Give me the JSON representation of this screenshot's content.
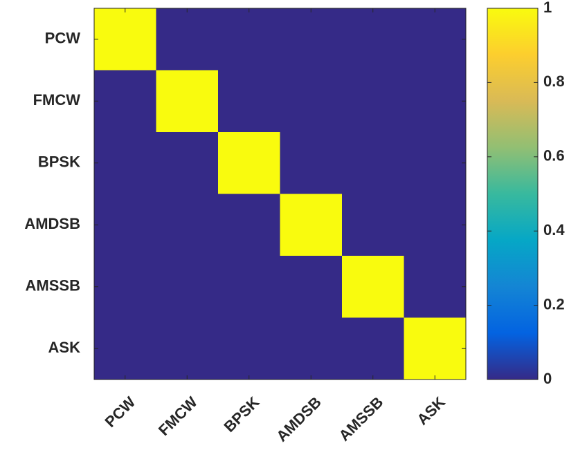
{
  "chart_data": {
    "type": "heatmap",
    "x_categories": [
      "PCW",
      "FMCW",
      "BPSK",
      "AMDSB",
      "AMSSB",
      "ASK"
    ],
    "y_categories": [
      "PCW",
      "FMCW",
      "BPSK",
      "AMDSB",
      "AMSSB",
      "ASK"
    ],
    "z": [
      [
        1,
        0,
        0,
        0,
        0,
        0
      ],
      [
        0,
        1,
        0,
        0,
        0,
        0
      ],
      [
        0,
        0,
        1,
        0,
        0,
        0
      ],
      [
        0,
        0,
        0,
        1,
        0,
        0
      ],
      [
        0,
        0,
        0,
        0,
        1,
        0
      ],
      [
        0,
        0,
        0,
        0,
        0,
        1
      ]
    ],
    "colormap": [
      "#352a87",
      "#0363e1",
      "#1485d4",
      "#06a7c6",
      "#38b99e",
      "#92bf73",
      "#d9ba56",
      "#fcce2e",
      "#f9fb0e"
    ],
    "zlim": [
      0,
      1
    ],
    "zticks": [
      0,
      0.2,
      0.4,
      0.6,
      0.8,
      1
    ],
    "colorbar": true
  }
}
